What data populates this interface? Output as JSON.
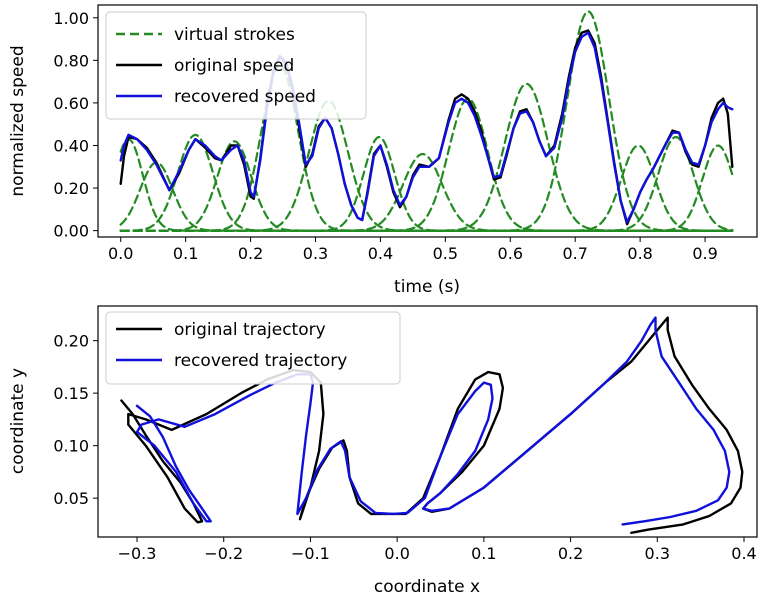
{
  "colors": {
    "virtual": "#228B22",
    "original": "#000000",
    "recovered": "#1010DD"
  },
  "chart_data": [
    {
      "type": "line",
      "xlabel": "time (s)",
      "ylabel": "normalized speed",
      "xlim": [
        -0.035,
        0.98
      ],
      "ylim": [
        -0.03,
        1.06
      ],
      "xticks": [
        0.0,
        0.1,
        0.2,
        0.3,
        0.4,
        0.5,
        0.6,
        0.7,
        0.8,
        0.9
      ],
      "xtick_labels": [
        "0.0",
        "0.1",
        "0.2",
        "0.3",
        "0.4",
        "0.5",
        "0.6",
        "0.7",
        "0.8",
        "0.9"
      ],
      "yticks": [
        0.0,
        0.2,
        0.4,
        0.6,
        0.8,
        1.0
      ],
      "ytick_labels": [
        "0.00",
        "0.20",
        "0.40",
        "0.60",
        "0.80",
        "1.00"
      ],
      "legend": [
        "virtual strokes",
        "original speed",
        "recovered speed"
      ],
      "legend_loc": "upper-left",
      "virtual_strokes": [
        {
          "t0": 0.012,
          "amp": 0.43,
          "width": 0.022
        },
        {
          "t0": 0.055,
          "amp": 0.32,
          "width": 0.025
        },
        {
          "t0": 0.115,
          "amp": 0.45,
          "width": 0.027
        },
        {
          "t0": 0.175,
          "amp": 0.42,
          "width": 0.026
        },
        {
          "t0": 0.245,
          "amp": 0.78,
          "width": 0.028
        },
        {
          "t0": 0.32,
          "amp": 0.61,
          "width": 0.03
        },
        {
          "t0": 0.398,
          "amp": 0.44,
          "width": 0.024
        },
        {
          "t0": 0.465,
          "amp": 0.36,
          "width": 0.03
        },
        {
          "t0": 0.535,
          "amp": 0.62,
          "width": 0.03
        },
        {
          "t0": 0.625,
          "amp": 0.69,
          "width": 0.033
        },
        {
          "t0": 0.72,
          "amp": 1.03,
          "width": 0.032
        },
        {
          "t0": 0.797,
          "amp": 0.4,
          "width": 0.026
        },
        {
          "t0": 0.855,
          "amp": 0.44,
          "width": 0.027
        },
        {
          "t0": 0.92,
          "amp": 0.4,
          "width": 0.024
        }
      ],
      "series": [
        {
          "name": "original speed",
          "x": [
            0.0,
            0.005,
            0.012,
            0.025,
            0.04,
            0.055,
            0.075,
            0.09,
            0.105,
            0.115,
            0.13,
            0.145,
            0.155,
            0.17,
            0.18,
            0.19,
            0.2,
            0.205,
            0.215,
            0.225,
            0.235,
            0.245,
            0.255,
            0.265,
            0.275,
            0.285,
            0.295,
            0.305,
            0.315,
            0.325,
            0.335,
            0.345,
            0.355,
            0.365,
            0.372,
            0.38,
            0.39,
            0.4,
            0.41,
            0.42,
            0.43,
            0.44,
            0.45,
            0.46,
            0.475,
            0.49,
            0.505,
            0.515,
            0.525,
            0.535,
            0.545,
            0.555,
            0.565,
            0.575,
            0.585,
            0.595,
            0.605,
            0.615,
            0.625,
            0.635,
            0.645,
            0.655,
            0.668,
            0.68,
            0.69,
            0.7,
            0.71,
            0.72,
            0.73,
            0.74,
            0.75,
            0.76,
            0.77,
            0.78,
            0.79,
            0.8,
            0.81,
            0.82,
            0.83,
            0.84,
            0.85,
            0.86,
            0.87,
            0.88,
            0.89,
            0.9,
            0.91,
            0.92,
            0.928,
            0.935,
            0.942
          ],
          "y": [
            0.22,
            0.35,
            0.44,
            0.43,
            0.39,
            0.32,
            0.19,
            0.27,
            0.38,
            0.43,
            0.39,
            0.34,
            0.33,
            0.4,
            0.4,
            0.31,
            0.16,
            0.15,
            0.34,
            0.58,
            0.75,
            0.82,
            0.78,
            0.66,
            0.48,
            0.3,
            0.36,
            0.49,
            0.53,
            0.48,
            0.36,
            0.22,
            0.12,
            0.06,
            0.05,
            0.18,
            0.36,
            0.4,
            0.3,
            0.18,
            0.11,
            0.16,
            0.26,
            0.31,
            0.3,
            0.34,
            0.52,
            0.62,
            0.64,
            0.62,
            0.56,
            0.47,
            0.35,
            0.24,
            0.25,
            0.36,
            0.48,
            0.56,
            0.57,
            0.51,
            0.42,
            0.35,
            0.4,
            0.55,
            0.72,
            0.86,
            0.93,
            0.94,
            0.88,
            0.72,
            0.52,
            0.32,
            0.14,
            0.03,
            0.1,
            0.18,
            0.24,
            0.29,
            0.35,
            0.41,
            0.47,
            0.46,
            0.37,
            0.31,
            0.3,
            0.4,
            0.53,
            0.6,
            0.62,
            0.55,
            0.3
          ]
        },
        {
          "name": "recovered speed",
          "x": [
            0.0,
            0.005,
            0.012,
            0.025,
            0.04,
            0.055,
            0.075,
            0.09,
            0.105,
            0.115,
            0.13,
            0.145,
            0.155,
            0.17,
            0.18,
            0.19,
            0.2,
            0.205,
            0.215,
            0.225,
            0.235,
            0.245,
            0.255,
            0.265,
            0.275,
            0.285,
            0.295,
            0.305,
            0.315,
            0.325,
            0.335,
            0.345,
            0.355,
            0.365,
            0.372,
            0.38,
            0.39,
            0.4,
            0.41,
            0.42,
            0.43,
            0.44,
            0.45,
            0.46,
            0.475,
            0.49,
            0.505,
            0.515,
            0.525,
            0.535,
            0.545,
            0.555,
            0.565,
            0.575,
            0.585,
            0.595,
            0.605,
            0.615,
            0.625,
            0.635,
            0.645,
            0.655,
            0.668,
            0.68,
            0.69,
            0.7,
            0.71,
            0.72,
            0.73,
            0.74,
            0.75,
            0.76,
            0.77,
            0.78,
            0.79,
            0.8,
            0.81,
            0.82,
            0.83,
            0.84,
            0.85,
            0.86,
            0.87,
            0.88,
            0.89,
            0.9,
            0.91,
            0.92,
            0.928,
            0.935,
            0.942
          ],
          "y": [
            0.33,
            0.4,
            0.45,
            0.43,
            0.38,
            0.31,
            0.19,
            0.28,
            0.38,
            0.43,
            0.4,
            0.35,
            0.33,
            0.38,
            0.4,
            0.33,
            0.18,
            0.16,
            0.33,
            0.57,
            0.74,
            0.82,
            0.79,
            0.67,
            0.5,
            0.31,
            0.35,
            0.48,
            0.53,
            0.48,
            0.36,
            0.22,
            0.12,
            0.06,
            0.05,
            0.17,
            0.35,
            0.4,
            0.31,
            0.19,
            0.12,
            0.16,
            0.25,
            0.3,
            0.3,
            0.34,
            0.51,
            0.6,
            0.62,
            0.6,
            0.54,
            0.45,
            0.35,
            0.25,
            0.26,
            0.37,
            0.48,
            0.55,
            0.56,
            0.51,
            0.42,
            0.35,
            0.39,
            0.53,
            0.7,
            0.84,
            0.91,
            0.93,
            0.86,
            0.7,
            0.51,
            0.31,
            0.14,
            0.04,
            0.1,
            0.18,
            0.24,
            0.29,
            0.35,
            0.41,
            0.46,
            0.46,
            0.38,
            0.32,
            0.31,
            0.4,
            0.51,
            0.57,
            0.6,
            0.58,
            0.57
          ]
        }
      ]
    },
    {
      "type": "line",
      "xlabel": "coordinate x",
      "ylabel": "coordinate y",
      "xlim": [
        -0.345,
        0.415
      ],
      "ylim": [
        0.013,
        0.233
      ],
      "xticks": [
        -0.3,
        -0.2,
        -0.1,
        0.0,
        0.1,
        0.2,
        0.3,
        0.4
      ],
      "xtick_labels": [
        "−0.3",
        "−0.2",
        "−0.1",
        "0.0",
        "0.1",
        "0.2",
        "0.3",
        "0.4"
      ],
      "yticks": [
        0.05,
        0.1,
        0.15,
        0.2
      ],
      "ytick_labels": [
        "0.05",
        "0.10",
        "0.15",
        "0.20"
      ],
      "legend": [
        "original trajectory",
        "recovered trajectory"
      ],
      "legend_loc": "upper-left",
      "series": [
        {
          "name": "original trajectory",
          "x": [
            -0.318,
            -0.305,
            -0.29,
            -0.27,
            -0.25,
            -0.235,
            -0.225,
            -0.23,
            -0.245,
            -0.265,
            -0.29,
            -0.31,
            -0.31,
            -0.29,
            -0.26,
            -0.22,
            -0.18,
            -0.15,
            -0.12,
            -0.1,
            -0.088,
            -0.085,
            -0.09,
            -0.1,
            -0.112,
            -0.105,
            -0.09,
            -0.075,
            -0.062,
            -0.058,
            -0.055,
            -0.045,
            -0.03,
            -0.01,
            0.01,
            0.03,
            0.05,
            0.07,
            0.09,
            0.105,
            0.118,
            0.122,
            0.118,
            0.1,
            0.075,
            0.05,
            0.035,
            0.03,
            0.04,
            0.06,
            0.1,
            0.15,
            0.2,
            0.24,
            0.27,
            0.29,
            0.305,
            0.312,
            0.312,
            0.32,
            0.34,
            0.36,
            0.38,
            0.393,
            0.398,
            0.396,
            0.385,
            0.36,
            0.33,
            0.29,
            0.27
          ],
          "y": [
            0.143,
            0.13,
            0.11,
            0.085,
            0.065,
            0.045,
            0.028,
            0.027,
            0.04,
            0.07,
            0.1,
            0.12,
            0.13,
            0.125,
            0.115,
            0.13,
            0.15,
            0.163,
            0.172,
            0.17,
            0.16,
            0.13,
            0.095,
            0.06,
            0.03,
            0.05,
            0.078,
            0.098,
            0.105,
            0.095,
            0.07,
            0.045,
            0.035,
            0.035,
            0.035,
            0.05,
            0.09,
            0.135,
            0.163,
            0.17,
            0.168,
            0.155,
            0.135,
            0.1,
            0.075,
            0.055,
            0.045,
            0.04,
            0.037,
            0.04,
            0.06,
            0.095,
            0.13,
            0.16,
            0.18,
            0.2,
            0.215,
            0.222,
            0.21,
            0.185,
            0.158,
            0.135,
            0.115,
            0.095,
            0.075,
            0.06,
            0.045,
            0.033,
            0.025,
            0.02,
            0.017
          ]
        },
        {
          "name": "recovered trajectory",
          "x": [
            -0.3,
            -0.285,
            -0.27,
            -0.255,
            -0.24,
            -0.225,
            -0.215,
            -0.22,
            -0.235,
            -0.255,
            -0.28,
            -0.3,
            -0.295,
            -0.275,
            -0.245,
            -0.21,
            -0.17,
            -0.14,
            -0.115,
            -0.1,
            -0.097,
            -0.1,
            -0.105,
            -0.11,
            -0.115,
            -0.105,
            -0.092,
            -0.077,
            -0.065,
            -0.06,
            -0.055,
            -0.042,
            -0.025,
            -0.005,
            0.012,
            0.032,
            0.05,
            0.07,
            0.09,
            0.1,
            0.108,
            0.11,
            0.105,
            0.09,
            0.07,
            0.05,
            0.035,
            0.03,
            0.04,
            0.06,
            0.1,
            0.15,
            0.2,
            0.24,
            0.265,
            0.282,
            0.292,
            0.298,
            0.298,
            0.305,
            0.325,
            0.345,
            0.365,
            0.378,
            0.383,
            0.38,
            0.37,
            0.345,
            0.315,
            0.285,
            0.26
          ],
          "y": [
            0.138,
            0.128,
            0.108,
            0.08,
            0.058,
            0.04,
            0.028,
            0.028,
            0.045,
            0.075,
            0.1,
            0.113,
            0.12,
            0.125,
            0.118,
            0.13,
            0.148,
            0.16,
            0.168,
            0.168,
            0.16,
            0.14,
            0.11,
            0.075,
            0.035,
            0.05,
            0.077,
            0.097,
            0.104,
            0.095,
            0.07,
            0.047,
            0.036,
            0.035,
            0.036,
            0.05,
            0.09,
            0.13,
            0.152,
            0.16,
            0.158,
            0.145,
            0.125,
            0.095,
            0.073,
            0.055,
            0.045,
            0.04,
            0.038,
            0.04,
            0.06,
            0.095,
            0.13,
            0.16,
            0.18,
            0.2,
            0.215,
            0.222,
            0.21,
            0.185,
            0.16,
            0.135,
            0.115,
            0.095,
            0.075,
            0.06,
            0.048,
            0.038,
            0.032,
            0.028,
            0.025
          ]
        }
      ]
    }
  ]
}
